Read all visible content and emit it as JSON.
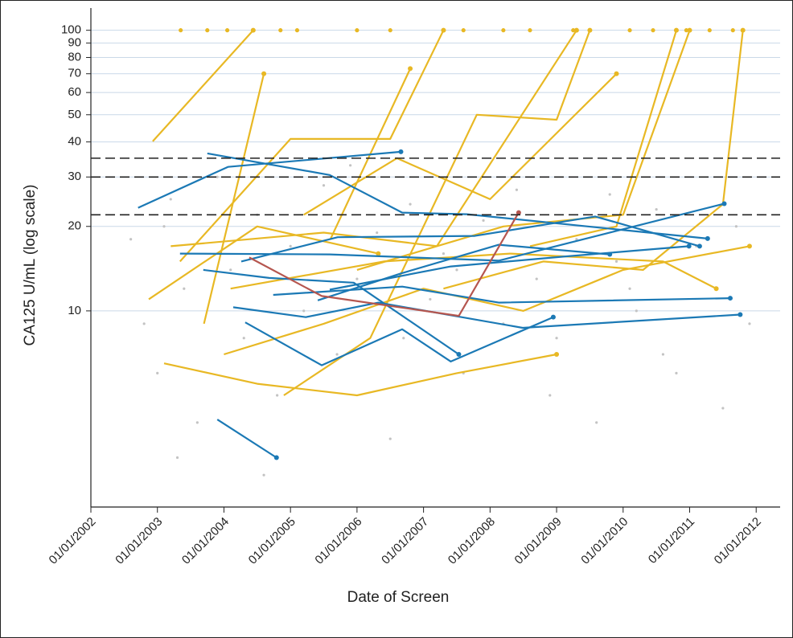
{
  "chart_data": {
    "type": "line",
    "x_label": "Date of Screen",
    "y_label": "CA125 U/mL (log scale)",
    "log_scale_y": true,
    "grid": true,
    "end_markers": true,
    "xlim": [
      2002,
      2012.36
    ],
    "ylim": [
      2,
      120
    ],
    "xticks": [
      {
        "value": 2002,
        "label": "01/01/2002"
      },
      {
        "value": 2003,
        "label": "01/01/2003"
      },
      {
        "value": 2004,
        "label": "01/01/2004"
      },
      {
        "value": 2005,
        "label": "01/01/2005"
      },
      {
        "value": 2006,
        "label": "01/01/2006"
      },
      {
        "value": 2007,
        "label": "01/01/2007"
      },
      {
        "value": 2008,
        "label": "01/01/2008"
      },
      {
        "value": 2009,
        "label": "01/01/2009"
      },
      {
        "value": 2010,
        "label": "01/01/2010"
      },
      {
        "value": 2011,
        "label": "01/01/2011"
      },
      {
        "value": 2012,
        "label": "01/01/2012"
      }
    ],
    "yticks": [
      10,
      20,
      30,
      40,
      50,
      60,
      70,
      80,
      90,
      100
    ],
    "reference_lines": [
      35,
      30,
      22
    ],
    "reference_color": "#222222",
    "series": [
      {
        "mode": "markers",
        "color": "#c3c3c3",
        "x": [
          2002.6,
          2002.8,
          2003.0,
          2003.2,
          2003.4,
          2003.6,
          2003.9,
          2004.1,
          2004.3,
          2004.5,
          2004.8,
          2005.0,
          2005.2,
          2005.5,
          2005.7,
          2006.0,
          2006.3,
          2006.5,
          2006.8,
          2007.1,
          2007.3,
          2007.6,
          2007.9,
          2008.2,
          2008.4,
          2008.7,
          2009.0,
          2009.3,
          2009.6,
          2009.9,
          2010.2,
          2010.5,
          2010.8,
          2011.1,
          2011.4,
          2011.7,
          2011.9,
          2003.3,
          2005.9,
          2008.9,
          2010.6,
          2004.6,
          2007.5,
          2009.8,
          2011.5,
          2003.1,
          2006.7,
          2010.1
        ],
        "values": [
          18,
          9,
          6,
          25,
          12,
          4,
          30,
          14,
          8,
          22,
          5,
          17,
          10,
          28,
          7,
          13,
          19,
          3.5,
          24,
          11,
          16,
          6,
          21,
          9,
          27,
          13,
          8,
          18,
          4,
          15,
          10,
          23,
          6,
          17,
          12,
          20,
          9,
          3,
          33,
          5,
          7,
          2.6,
          14,
          26,
          4.5,
          20,
          8,
          12
        ]
      },
      {
        "mode": "lines",
        "color": "#e8b824",
        "x": [
          2002.93,
          2004.44
        ],
        "values": [
          40.2,
          100
        ]
      },
      {
        "mode": "lines",
        "color": "#e8b824",
        "x": [
          2002.87,
          2004.5,
          2006.32
        ],
        "values": [
          11,
          20,
          16
        ]
      },
      {
        "mode": "lines",
        "color": "#e8b824",
        "x": [
          2003.34,
          2005.0,
          2006.5,
          2007.3
        ],
        "values": [
          15,
          41,
          41,
          100
        ]
      },
      {
        "mode": "lines",
        "color": "#e8b824",
        "x": [
          2004.0,
          2005.5,
          2007.0,
          2008.5,
          2010.0,
          2011.9
        ],
        "values": [
          7,
          9,
          12,
          10,
          14,
          17
        ]
      },
      {
        "mode": "lines",
        "color": "#e8b824",
        "x": [
          2003.1,
          2004.5,
          2006.0,
          2007.5,
          2009.0
        ],
        "values": [
          6.5,
          5.5,
          5,
          6,
          7
        ]
      },
      {
        "mode": "lines",
        "color": "#e8b824",
        "x": [
          2004.9,
          2006.2,
          2007.8,
          2009.0,
          2009.5
        ],
        "values": [
          5,
          8,
          50,
          48,
          100
        ]
      },
      {
        "mode": "lines",
        "color": "#e8b824",
        "x": [
          2005.2,
          2006.6,
          2008.0,
          2009.9
        ],
        "values": [
          22,
          35,
          25,
          70
        ]
      },
      {
        "mode": "lines",
        "color": "#e8b824",
        "x": [
          2006.0,
          2008.2,
          2010.0,
          2011.0
        ],
        "values": [
          14,
          20,
          22,
          100
        ]
      },
      {
        "mode": "lines",
        "color": "#e8b824",
        "x": [
          2007.3,
          2008.8,
          2010.3,
          2011.5,
          2011.8
        ],
        "values": [
          12,
          15,
          14,
          24,
          100
        ]
      },
      {
        "mode": "lines",
        "color": "#e8b824",
        "x": [
          2003.7,
          2004.6
        ],
        "values": [
          9,
          70
        ]
      },
      {
        "mode": "lines",
        "color": "#e8b824",
        "x": [
          2005.6,
          2006.8
        ],
        "values": [
          18,
          73
        ]
      },
      {
        "mode": "lines",
        "color": "#e8b824",
        "x": [
          2008.6,
          2009.9,
          2010.8
        ],
        "values": [
          17,
          20,
          100
        ]
      },
      {
        "mode": "lines",
        "color": "#e8b824",
        "x": [
          2003.2,
          2005.5,
          2007.2,
          2009.3
        ],
        "values": [
          17,
          19,
          17,
          100
        ]
      },
      {
        "mode": "lines",
        "color": "#e8b824",
        "x": [
          2004.1,
          2006.4,
          2008.3,
          2010.6,
          2011.4
        ],
        "values": [
          12,
          15,
          16,
          15,
          12
        ]
      },
      {
        "mode": "markers",
        "color": "#e8b824",
        "x": [
          2003.35,
          2003.75,
          2004.05,
          2004.85,
          2005.1,
          2006.0,
          2006.5,
          2007.6,
          2008.2,
          2008.6,
          2009.25,
          2010.1,
          2010.45,
          2010.95,
          2011.3,
          2011.65
        ],
        "values": [
          100,
          100,
          100,
          100,
          100,
          100,
          100,
          100,
          100,
          100,
          100,
          100,
          100,
          100,
          100,
          100
        ]
      },
      {
        "mode": "lines",
        "color": "#1b79b5",
        "x": [
          2002.71,
          2004.06,
          2006.66
        ],
        "values": [
          23.3,
          32.6,
          36.9
        ]
      },
      {
        "mode": "lines",
        "color": "#1b79b5",
        "x": [
          2003.9,
          2004.79
        ],
        "values": [
          4.1,
          3.0
        ]
      },
      {
        "mode": "lines",
        "color": "#1b79b5",
        "x": [
          2003.69,
          2004.68,
          2005.95,
          2007.53
        ],
        "values": [
          14,
          13.1,
          12.6,
          7
        ]
      },
      {
        "mode": "lines",
        "color": "#1b79b5",
        "x": [
          2003.34,
          2005.59,
          2008.13,
          2011.52
        ],
        "values": [
          16,
          15.9,
          15.1,
          24.1
        ]
      },
      {
        "mode": "lines",
        "color": "#1b79b5",
        "x": [
          2003.75,
          2005.59,
          2006.68,
          2007.65,
          2011.27
        ],
        "values": [
          36.4,
          30.5,
          22.4,
          22.1,
          18.1
        ]
      },
      {
        "mode": "lines",
        "color": "#1b79b5",
        "x": [
          2004.14,
          2005.23,
          2006.32,
          2008.49,
          2011.76
        ],
        "values": [
          10.3,
          9.5,
          10.7,
          8.7,
          9.7
        ]
      },
      {
        "mode": "lines",
        "color": "#1b79b5",
        "x": [
          2004.32,
          2005.47,
          2006.68,
          2007.41,
          2008.95
        ],
        "values": [
          9.1,
          6.4,
          8.6,
          6.6,
          9.5
        ]
      },
      {
        "mode": "lines",
        "color": "#1b79b5",
        "x": [
          2004.74,
          2006.68,
          2008.13,
          2011.61
        ],
        "values": [
          11.4,
          12.2,
          10.7,
          11.1
        ]
      },
      {
        "mode": "lines",
        "color": "#1b79b5",
        "x": [
          2004.26,
          2005.71,
          2007.77,
          2009.58,
          2011.15
        ],
        "values": [
          15,
          18.3,
          18.5,
          21.7,
          17
        ]
      },
      {
        "mode": "lines",
        "color": "#1b79b5",
        "x": [
          2005.41,
          2006.66,
          2008.13,
          2009.8
        ],
        "values": [
          10.9,
          13.6,
          17.2,
          15.9
        ]
      },
      {
        "mode": "lines",
        "color": "#1b79b5",
        "x": [
          2005.59,
          2007.41,
          2009.1,
          2010.99
        ],
        "values": [
          11.9,
          14.4,
          15.6,
          17
        ]
      },
      {
        "mode": "lines",
        "color": "#b5564f",
        "x": [
          2004.38,
          2005.47,
          2007.53,
          2008.43
        ],
        "values": [
          15.5,
          11.3,
          9.6,
          22.4
        ]
      }
    ]
  }
}
